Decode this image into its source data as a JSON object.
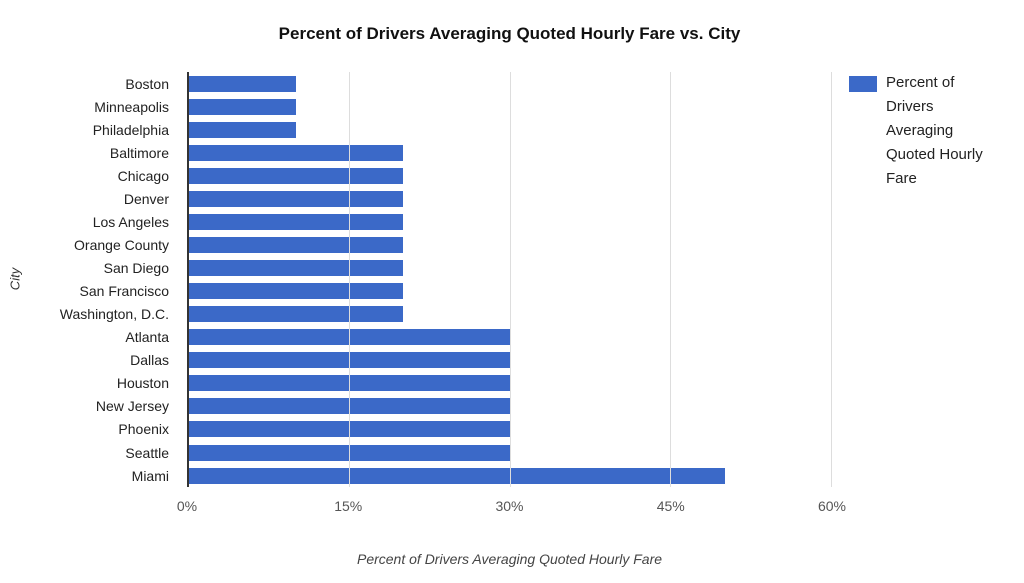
{
  "title": "Percent of Drivers Averaging Quoted Hourly Fare vs. City",
  "legend": {
    "label": "Percent of Drivers Averaging Quoted Hourly Fare",
    "position": "right"
  },
  "colors": {
    "bar": "#3b69c8",
    "gridline": "#dddddd",
    "axis_line": "#333333",
    "tick_text": "#555555",
    "label_text": "#222222",
    "title_text": "#111111"
  },
  "chart_data": {
    "type": "bar",
    "orientation": "horizontal",
    "title": "Percent of Drivers Averaging Quoted Hourly Fare vs. City",
    "xlabel": "Percent of Drivers Averaging Quoted Hourly Fare",
    "ylabel": "City",
    "categories": [
      "Boston",
      "Minneapolis",
      "Philadelphia",
      "Baltimore",
      "Chicago",
      "Denver",
      "Los Angeles",
      "Orange County",
      "San Diego",
      "San Francisco",
      "Washington, D.C.",
      "Atlanta",
      "Dallas",
      "Houston",
      "New Jersey",
      "Phoenix",
      "Seattle",
      "Miami"
    ],
    "values": [
      10,
      10,
      10,
      20,
      20,
      20,
      20,
      20,
      20,
      20,
      20,
      30,
      30,
      30,
      30,
      30,
      30,
      50
    ],
    "unit": "%",
    "xlim": [
      0,
      60
    ],
    "xticks": [
      "0%",
      "15%",
      "30%",
      "45%",
      "60%"
    ],
    "xtick_values": [
      0,
      15,
      30,
      45,
      60
    ],
    "grid": true,
    "legend": "Percent of Drivers Averaging Quoted Hourly Fare",
    "legend_position": "right"
  }
}
